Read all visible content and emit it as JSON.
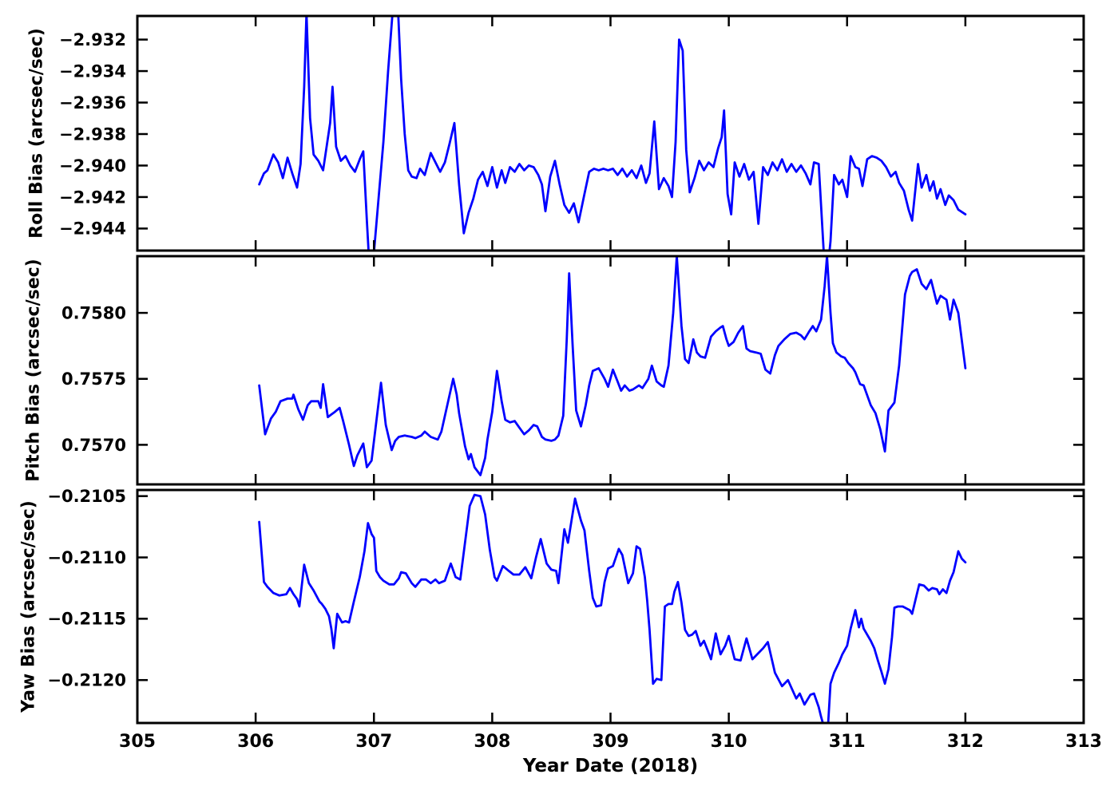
{
  "xlabel": "Year Date (2018)",
  "xaxis": {
    "xlim": [
      305,
      313
    ],
    "tick_values": [
      305,
      306,
      307,
      308,
      309,
      310,
      311,
      312,
      313
    ],
    "tick_labels": [
      "305",
      "306",
      "307",
      "308",
      "309",
      "310",
      "311",
      "312",
      "313"
    ]
  },
  "style": {
    "line_color": "#0000ff",
    "axis_color": "#000000",
    "background": "#ffffff"
  },
  "chart_data": [
    {
      "type": "line",
      "name": "roll-bias",
      "ylabel": "Roll Bias (arcsec/sec)",
      "ylim": [
        -2.9454,
        -2.9305
      ],
      "ytick_values": [
        -2.932,
        -2.934,
        -2.936,
        -2.938,
        -2.94,
        -2.942,
        -2.944
      ],
      "ytick_labels": [
        "−2.932",
        "−2.934",
        "−2.936",
        "−2.938",
        "−2.940",
        "−2.942",
        "−2.944"
      ],
      "grid": false,
      "legend": false,
      "x": [
        306.03,
        306.07,
        306.1,
        306.15,
        306.19,
        306.23,
        306.27,
        306.31,
        306.35,
        306.38,
        306.41,
        306.43,
        306.46,
        306.49,
        306.53,
        306.57,
        306.6,
        306.63,
        306.65,
        306.68,
        306.72,
        306.76,
        306.8,
        306.84,
        306.88,
        306.91,
        306.94,
        306.97,
        307.0,
        307.04,
        307.08,
        307.12,
        307.16,
        307.2,
        307.23,
        307.26,
        307.29,
        307.32,
        307.36,
        307.39,
        307.43,
        307.48,
        307.52,
        307.56,
        307.6,
        307.64,
        307.68,
        307.72,
        307.76,
        307.8,
        307.84,
        307.88,
        307.92,
        307.96,
        308.0,
        308.04,
        308.08,
        308.11,
        308.15,
        308.19,
        308.23,
        308.27,
        308.31,
        308.35,
        308.39,
        308.42,
        308.45,
        308.49,
        308.53,
        308.57,
        308.61,
        308.65,
        308.69,
        308.73,
        308.78,
        308.82,
        308.86,
        308.9,
        308.94,
        308.98,
        309.02,
        309.06,
        309.1,
        309.14,
        309.18,
        309.22,
        309.26,
        309.3,
        309.33,
        309.37,
        309.41,
        309.45,
        309.49,
        309.52,
        309.55,
        309.58,
        309.61,
        309.64,
        309.67,
        309.71,
        309.75,
        309.79,
        309.83,
        309.87,
        309.91,
        309.94,
        309.96,
        309.99,
        310.02,
        310.05,
        310.09,
        310.13,
        310.17,
        310.21,
        310.25,
        310.29,
        310.33,
        310.37,
        310.41,
        310.45,
        310.49,
        310.53,
        310.57,
        310.61,
        310.65,
        310.69,
        310.72,
        310.76,
        310.79,
        310.82,
        310.86,
        310.89,
        310.93,
        310.96,
        311.0,
        311.03,
        311.07,
        311.1,
        311.13,
        311.17,
        311.21,
        311.25,
        311.29,
        311.33,
        311.37,
        311.41,
        311.44,
        311.48,
        311.52,
        311.55,
        311.6,
        311.63,
        311.67,
        311.7,
        311.73,
        311.76,
        311.79,
        311.83,
        311.86,
        311.9,
        311.94,
        312.0
      ],
      "y": [
        -2.9412,
        -2.9405,
        -2.9403,
        -2.9393,
        -2.9398,
        -2.9408,
        -2.9395,
        -2.9405,
        -2.9414,
        -2.9399,
        -2.935,
        -2.9303,
        -2.937,
        -2.9393,
        -2.9397,
        -2.9403,
        -2.9388,
        -2.9373,
        -2.935,
        -2.9388,
        -2.9397,
        -2.9394,
        -2.94,
        -2.9404,
        -2.9396,
        -2.9391,
        -2.9435,
        -2.9475,
        -2.9455,
        -2.942,
        -2.9385,
        -2.934,
        -2.93,
        -2.9295,
        -2.9345,
        -2.938,
        -2.9403,
        -2.9407,
        -2.9408,
        -2.9402,
        -2.9406,
        -2.9392,
        -2.9398,
        -2.9404,
        -2.9398,
        -2.9386,
        -2.9373,
        -2.9412,
        -2.9443,
        -2.943,
        -2.9421,
        -2.9409,
        -2.9404,
        -2.9413,
        -2.9401,
        -2.9414,
        -2.9403,
        -2.9411,
        -2.9401,
        -2.9404,
        -2.9399,
        -2.9403,
        -2.94,
        -2.9401,
        -2.9406,
        -2.9412,
        -2.9429,
        -2.9407,
        -2.9397,
        -2.9412,
        -2.9425,
        -2.943,
        -2.9424,
        -2.9436,
        -2.9418,
        -2.9404,
        -2.9402,
        -2.9403,
        -2.9402,
        -2.9403,
        -2.9402,
        -2.9406,
        -2.9402,
        -2.9407,
        -2.9403,
        -2.9408,
        -2.94,
        -2.9411,
        -2.9405,
        -2.9372,
        -2.9415,
        -2.9408,
        -2.9413,
        -2.942,
        -2.9385,
        -2.932,
        -2.9327,
        -2.939,
        -2.9417,
        -2.9408,
        -2.9397,
        -2.9403,
        -2.9398,
        -2.9401,
        -2.9389,
        -2.9382,
        -2.9365,
        -2.9418,
        -2.9431,
        -2.9398,
        -2.9407,
        -2.9399,
        -2.9409,
        -2.9404,
        -2.9437,
        -2.9401,
        -2.9406,
        -2.9398,
        -2.9403,
        -2.9396,
        -2.9404,
        -2.9399,
        -2.9404,
        -2.94,
        -2.9405,
        -2.9412,
        -2.9398,
        -2.9399,
        -2.9438,
        -2.9478,
        -2.9448,
        -2.9406,
        -2.9412,
        -2.9409,
        -2.942,
        -2.9394,
        -2.9401,
        -2.9402,
        -2.9413,
        -2.9396,
        -2.9394,
        -2.9395,
        -2.9397,
        -2.9401,
        -2.9407,
        -2.9404,
        -2.9411,
        -2.9416,
        -2.9428,
        -2.9435,
        -2.9399,
        -2.9414,
        -2.9406,
        -2.9416,
        -2.941,
        -2.9421,
        -2.9415,
        -2.9425,
        -2.9419,
        -2.9422,
        -2.9428,
        -2.9431
      ]
    },
    {
      "type": "line",
      "name": "pitch-bias",
      "ylabel": "Pitch Bias (arcsec/sec)",
      "ylim": [
        0.7567,
        0.75843
      ],
      "ytick_values": [
        0.758,
        0.7575,
        0.757
      ],
      "ytick_labels": [
        "0.7580",
        "0.7575",
        "0.7570"
      ],
      "grid": false,
      "legend": false,
      "x": [
        306.03,
        306.08,
        306.13,
        306.17,
        306.21,
        306.27,
        306.31,
        306.32,
        306.36,
        306.4,
        306.44,
        306.47,
        306.53,
        306.55,
        306.57,
        306.61,
        306.64,
        306.67,
        306.71,
        306.74,
        306.79,
        306.83,
        306.86,
        306.91,
        306.94,
        306.98,
        307.01,
        307.06,
        307.1,
        307.15,
        307.18,
        307.21,
        307.26,
        307.32,
        307.35,
        307.4,
        307.43,
        307.48,
        307.54,
        307.57,
        307.62,
        307.67,
        307.7,
        307.72,
        307.77,
        307.8,
        307.82,
        307.85,
        307.9,
        307.94,
        307.96,
        308.0,
        308.04,
        308.08,
        308.11,
        308.15,
        308.19,
        308.23,
        308.27,
        308.31,
        308.35,
        308.38,
        308.42,
        308.45,
        308.5,
        308.53,
        308.56,
        308.6,
        308.63,
        308.65,
        308.68,
        308.71,
        308.75,
        308.79,
        308.82,
        308.85,
        308.9,
        308.95,
        308.98,
        309.02,
        309.06,
        309.09,
        309.12,
        309.16,
        309.19,
        309.24,
        309.27,
        309.32,
        309.35,
        309.39,
        309.43,
        309.45,
        309.49,
        309.53,
        309.56,
        309.6,
        309.63,
        309.66,
        309.7,
        309.73,
        309.76,
        309.8,
        309.85,
        309.89,
        309.93,
        309.95,
        309.98,
        310.0,
        310.04,
        310.08,
        310.12,
        310.15,
        310.18,
        310.23,
        310.27,
        310.31,
        310.35,
        310.39,
        310.42,
        310.47,
        310.52,
        310.57,
        310.61,
        310.64,
        310.68,
        310.71,
        310.74,
        310.78,
        310.81,
        310.83,
        310.86,
        310.88,
        310.91,
        310.95,
        310.98,
        311.01,
        311.05,
        311.07,
        311.11,
        311.14,
        311.2,
        311.24,
        311.28,
        311.32,
        311.35,
        311.4,
        311.44,
        311.49,
        311.53,
        311.55,
        311.59,
        311.63,
        311.67,
        311.71,
        311.76,
        311.79,
        311.84,
        311.87,
        311.9,
        311.94,
        312.0
      ],
      "y": [
        0.75745,
        0.75708,
        0.7572,
        0.75725,
        0.75733,
        0.75735,
        0.75735,
        0.75738,
        0.75727,
        0.75719,
        0.7573,
        0.75733,
        0.75733,
        0.75728,
        0.75746,
        0.75721,
        0.75723,
        0.75725,
        0.75728,
        0.75718,
        0.757,
        0.75684,
        0.75692,
        0.75701,
        0.75683,
        0.75688,
        0.7571,
        0.75747,
        0.75715,
        0.75696,
        0.75703,
        0.75706,
        0.75707,
        0.75706,
        0.75705,
        0.75707,
        0.7571,
        0.75706,
        0.75704,
        0.7571,
        0.7573,
        0.7575,
        0.75738,
        0.75724,
        0.75699,
        0.75689,
        0.75693,
        0.75683,
        0.75677,
        0.7569,
        0.75704,
        0.75725,
        0.75756,
        0.75733,
        0.75719,
        0.75717,
        0.75718,
        0.75713,
        0.75708,
        0.75711,
        0.75715,
        0.75714,
        0.75706,
        0.75704,
        0.75703,
        0.75704,
        0.75707,
        0.75722,
        0.7578,
        0.7583,
        0.75775,
        0.75726,
        0.75714,
        0.7573,
        0.75745,
        0.75756,
        0.75758,
        0.7575,
        0.75744,
        0.75757,
        0.75748,
        0.75741,
        0.75745,
        0.75741,
        0.75742,
        0.75745,
        0.75743,
        0.7575,
        0.7576,
        0.75748,
        0.75745,
        0.75744,
        0.7576,
        0.758,
        0.75843,
        0.7579,
        0.75765,
        0.75762,
        0.7578,
        0.7577,
        0.75767,
        0.75766,
        0.75782,
        0.75786,
        0.75789,
        0.7579,
        0.7578,
        0.75775,
        0.75778,
        0.75785,
        0.7579,
        0.75773,
        0.75771,
        0.7577,
        0.75769,
        0.75757,
        0.75754,
        0.75768,
        0.75775,
        0.7578,
        0.75784,
        0.75785,
        0.75783,
        0.7578,
        0.75786,
        0.7579,
        0.75786,
        0.75795,
        0.7582,
        0.75843,
        0.758,
        0.75777,
        0.7577,
        0.75767,
        0.75766,
        0.75762,
        0.75758,
        0.75755,
        0.75746,
        0.75745,
        0.7573,
        0.75724,
        0.75712,
        0.75695,
        0.75726,
        0.75732,
        0.7576,
        0.75814,
        0.75828,
        0.75831,
        0.75833,
        0.75822,
        0.75818,
        0.75825,
        0.75807,
        0.75813,
        0.7581,
        0.75795,
        0.7581,
        0.758,
        0.75758
      ]
    },
    {
      "type": "line",
      "name": "yaw-bias",
      "ylabel": "Yaw Bias (arcsec/sec)",
      "ylim": [
        -0.21235,
        -0.21045
      ],
      "ytick_values": [
        -0.2105,
        -0.211,
        -0.2115,
        -0.212
      ],
      "ytick_labels": [
        "−0.2105",
        "−0.2110",
        "−0.2115",
        "−0.2120"
      ],
      "grid": false,
      "legend": false,
      "x": [
        306.03,
        306.07,
        306.1,
        306.15,
        306.2,
        306.26,
        306.29,
        306.32,
        306.35,
        306.37,
        306.41,
        306.45,
        306.49,
        306.54,
        306.56,
        306.59,
        306.62,
        306.64,
        306.66,
        306.69,
        306.73,
        306.76,
        306.79,
        306.83,
        306.88,
        306.92,
        306.95,
        306.98,
        307.0,
        307.02,
        307.05,
        307.08,
        307.13,
        307.17,
        307.21,
        307.23,
        307.27,
        307.32,
        307.35,
        307.4,
        307.44,
        307.48,
        307.52,
        307.55,
        307.6,
        307.65,
        307.69,
        307.73,
        307.77,
        307.81,
        307.85,
        307.9,
        307.94,
        307.98,
        308.02,
        308.04,
        308.09,
        308.14,
        308.18,
        308.23,
        308.28,
        308.33,
        308.37,
        308.41,
        308.46,
        308.5,
        308.54,
        308.56,
        308.61,
        308.64,
        308.7,
        308.75,
        308.78,
        308.82,
        308.85,
        308.88,
        308.92,
        308.95,
        308.98,
        309.02,
        309.07,
        309.1,
        309.15,
        309.19,
        309.22,
        309.25,
        309.29,
        309.31,
        309.33,
        309.36,
        309.39,
        309.43,
        309.46,
        309.49,
        309.52,
        309.54,
        309.57,
        309.6,
        309.63,
        309.66,
        309.69,
        309.72,
        309.76,
        309.79,
        309.85,
        309.89,
        309.93,
        309.97,
        310.0,
        310.05,
        310.1,
        310.15,
        310.2,
        310.25,
        310.29,
        310.33,
        310.39,
        310.45,
        310.5,
        310.57,
        310.6,
        310.64,
        310.69,
        310.72,
        310.76,
        310.78,
        310.81,
        310.84,
        310.86,
        310.89,
        310.93,
        310.96,
        311.0,
        311.03,
        311.07,
        311.1,
        311.12,
        311.14,
        311.2,
        311.23,
        311.26,
        311.29,
        311.32,
        311.35,
        311.38,
        311.4,
        311.43,
        311.47,
        311.51,
        311.53,
        311.55,
        311.59,
        311.61,
        311.65,
        311.69,
        311.72,
        311.76,
        311.78,
        311.81,
        311.84,
        311.87,
        311.9,
        311.94,
        311.97,
        312.0
      ],
      "y": [
        -0.21071,
        -0.2112,
        -0.21124,
        -0.21129,
        -0.21131,
        -0.2113,
        -0.21125,
        -0.2113,
        -0.21134,
        -0.2114,
        -0.21106,
        -0.21121,
        -0.21127,
        -0.21136,
        -0.21138,
        -0.21142,
        -0.21148,
        -0.21158,
        -0.21174,
        -0.21146,
        -0.21153,
        -0.21152,
        -0.21153,
        -0.21136,
        -0.21116,
        -0.21095,
        -0.21072,
        -0.21081,
        -0.21084,
        -0.21111,
        -0.21116,
        -0.21119,
        -0.21122,
        -0.21122,
        -0.21117,
        -0.21112,
        -0.21113,
        -0.21121,
        -0.21124,
        -0.21118,
        -0.21118,
        -0.21121,
        -0.21118,
        -0.21121,
        -0.21119,
        -0.21105,
        -0.21116,
        -0.21118,
        -0.21088,
        -0.21058,
        -0.21049,
        -0.2105,
        -0.21065,
        -0.21094,
        -0.21116,
        -0.21119,
        -0.21107,
        -0.21111,
        -0.21114,
        -0.21114,
        -0.21108,
        -0.21117,
        -0.211,
        -0.21085,
        -0.21105,
        -0.2111,
        -0.21111,
        -0.21121,
        -0.21077,
        -0.21088,
        -0.21052,
        -0.2107,
        -0.21078,
        -0.21111,
        -0.21133,
        -0.2114,
        -0.21139,
        -0.2112,
        -0.21109,
        -0.21107,
        -0.21093,
        -0.21098,
        -0.21121,
        -0.21113,
        -0.21091,
        -0.21093,
        -0.21116,
        -0.21135,
        -0.21159,
        -0.21203,
        -0.21199,
        -0.212,
        -0.2114,
        -0.21138,
        -0.21138,
        -0.21128,
        -0.2112,
        -0.21137,
        -0.21159,
        -0.21164,
        -0.21163,
        -0.2116,
        -0.21172,
        -0.21168,
        -0.21183,
        -0.21162,
        -0.21179,
        -0.21172,
        -0.21164,
        -0.21183,
        -0.21184,
        -0.21166,
        -0.21183,
        -0.21178,
        -0.21174,
        -0.21169,
        -0.21194,
        -0.21205,
        -0.212,
        -0.21215,
        -0.21211,
        -0.2122,
        -0.21212,
        -0.21211,
        -0.21222,
        -0.2123,
        -0.2124,
        -0.21236,
        -0.21203,
        -0.21194,
        -0.21186,
        -0.21179,
        -0.21172,
        -0.21158,
        -0.21143,
        -0.21157,
        -0.2115,
        -0.21158,
        -0.21168,
        -0.21174,
        -0.21184,
        -0.21193,
        -0.21203,
        -0.21191,
        -0.21165,
        -0.21141,
        -0.2114,
        -0.2114,
        -0.21142,
        -0.21143,
        -0.21146,
        -0.2113,
        -0.21122,
        -0.21123,
        -0.21127,
        -0.21125,
        -0.21126,
        -0.2113,
        -0.21126,
        -0.21129,
        -0.21119,
        -0.21112,
        -0.21095,
        -0.21101,
        -0.21104
      ]
    }
  ]
}
